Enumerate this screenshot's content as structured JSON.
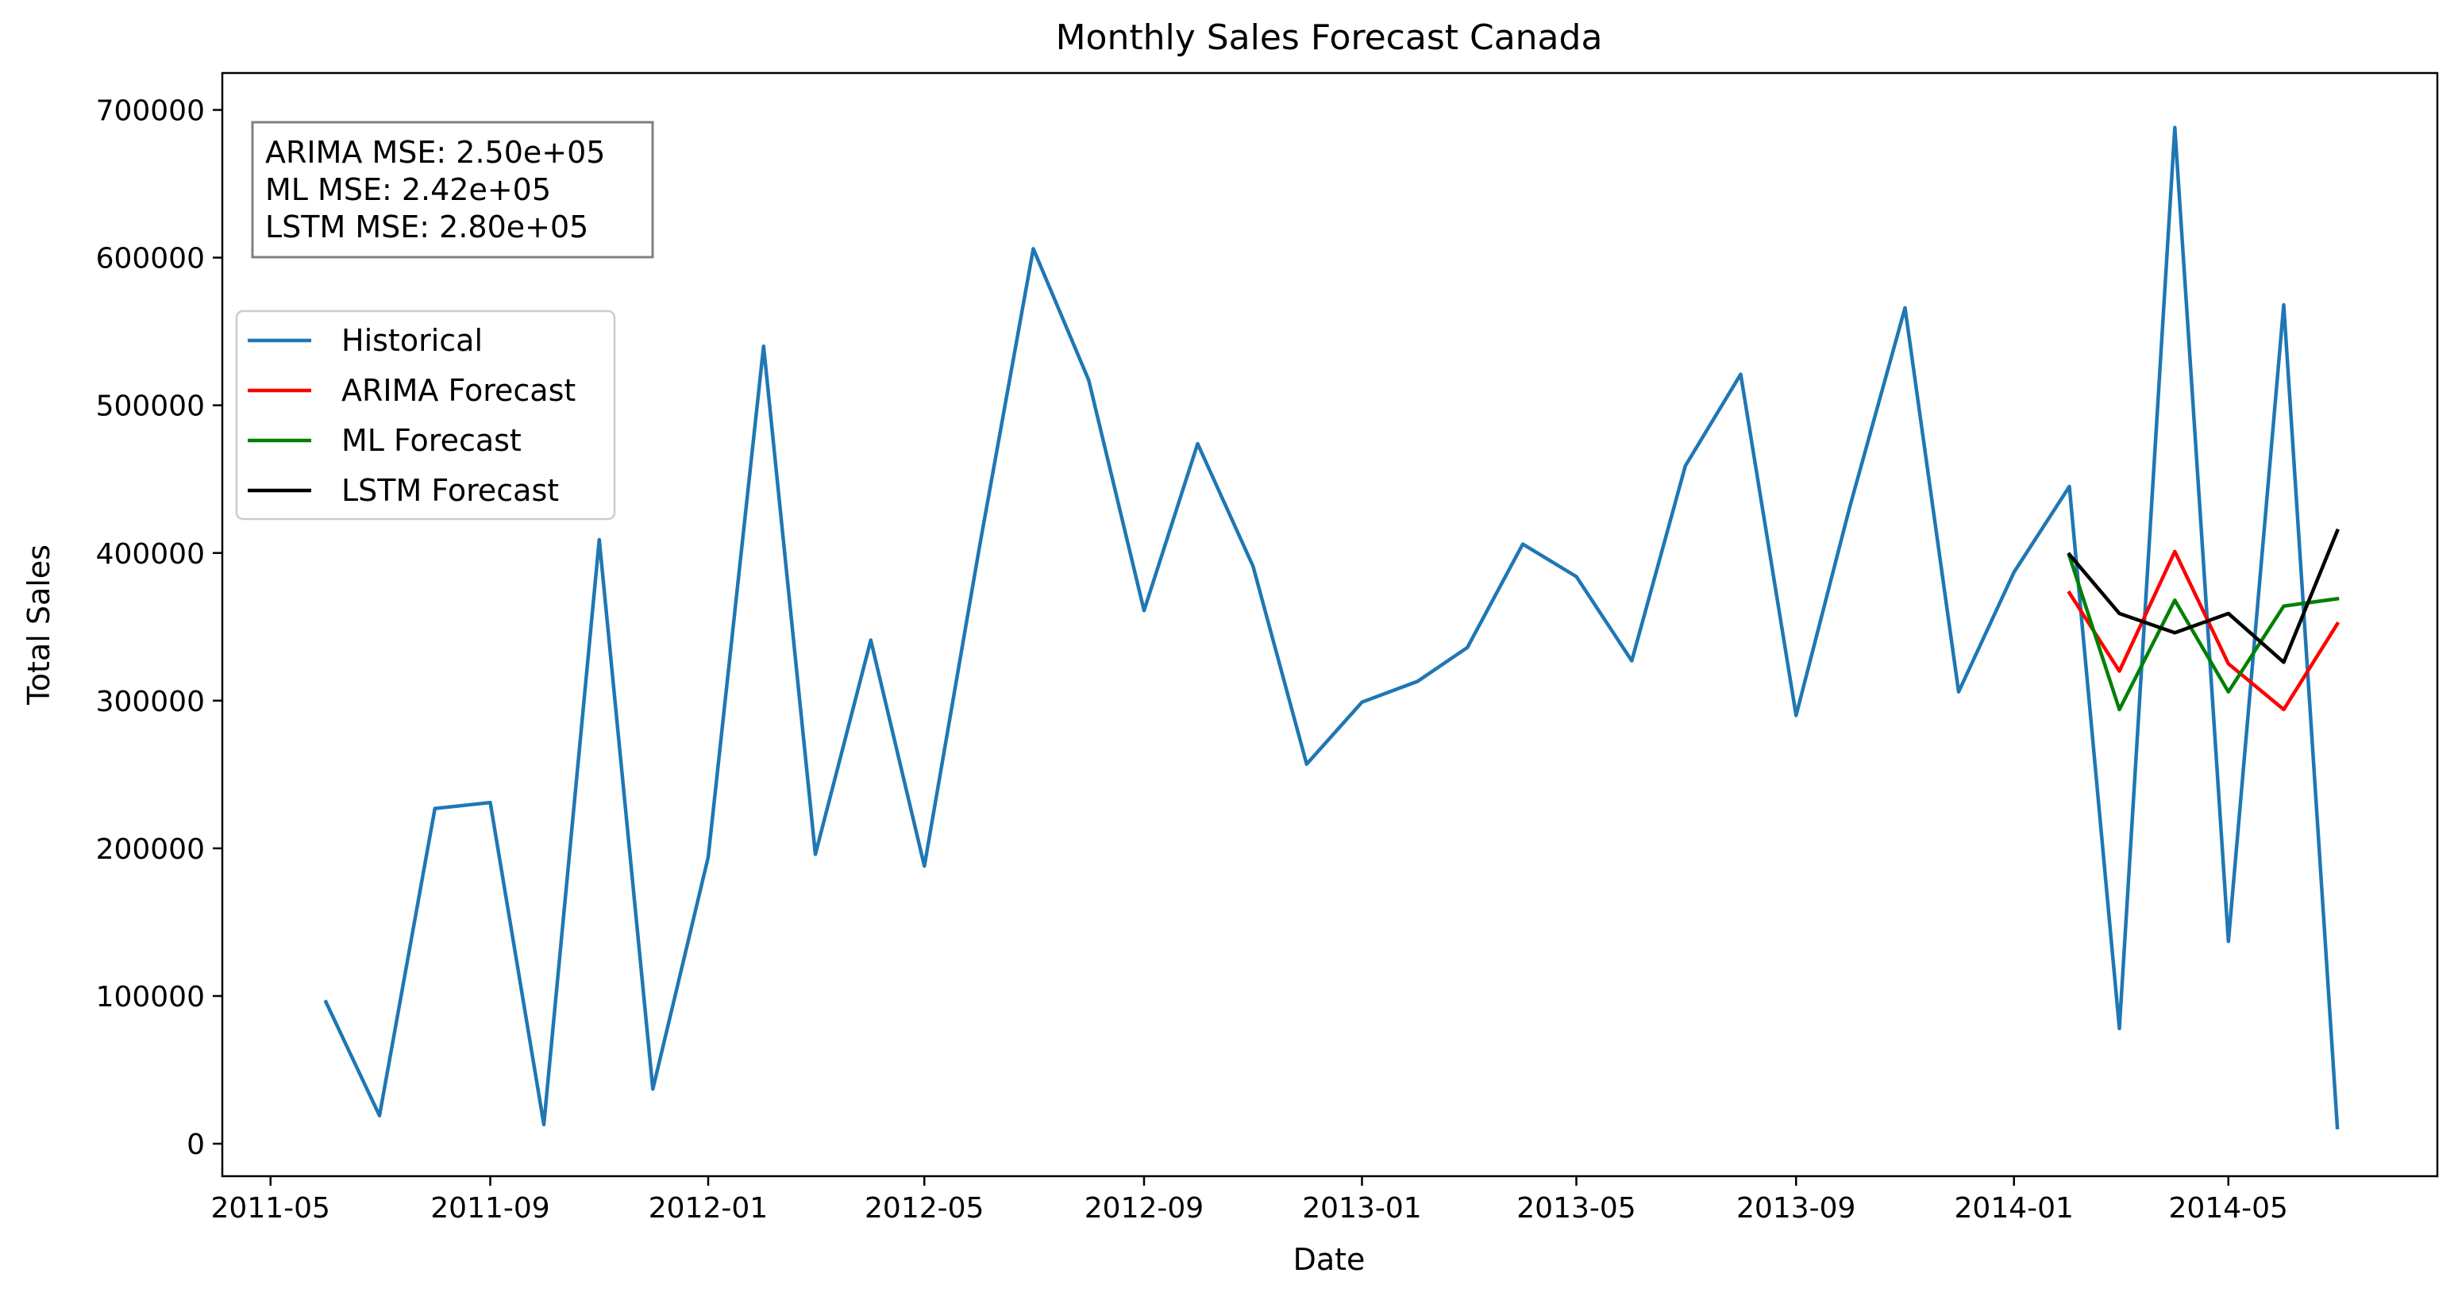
{
  "chart_data": {
    "type": "line",
    "title": "Monthly Sales Forecast Canada",
    "xlabel": "Date",
    "ylabel": "Total Sales",
    "x_range": [
      "2011-04-04",
      "2014-08-26"
    ],
    "ylim": [
      -22000,
      725000
    ],
    "x_ticks": [
      "2011-05",
      "2011-09",
      "2012-01",
      "2012-05",
      "2012-09",
      "2013-01",
      "2013-05",
      "2013-09",
      "2014-01",
      "2014-05"
    ],
    "y_ticks": [
      0,
      100000,
      200000,
      300000,
      400000,
      500000,
      600000,
      700000
    ],
    "y_tick_labels": [
      "0",
      "100000",
      "200000",
      "300000",
      "400000",
      "500000",
      "600000",
      "700000"
    ],
    "grid": false,
    "legend_position": "upper-left",
    "annotation": {
      "lines": [
        "ARIMA MSE: 2.50e+05",
        "ML MSE: 2.42e+05",
        "LSTM MSE: 2.80e+05"
      ]
    },
    "series": [
      {
        "name": "Historical",
        "color": "#1f77b4",
        "x": [
          "2011-06",
          "2011-07",
          "2011-08",
          "2011-09",
          "2011-10",
          "2011-11",
          "2011-12",
          "2012-01",
          "2012-02",
          "2012-03",
          "2012-04",
          "2012-05",
          "2012-06",
          "2012-07",
          "2012-08",
          "2012-09",
          "2012-10",
          "2012-11",
          "2012-12",
          "2013-01",
          "2013-02",
          "2013-03",
          "2013-04",
          "2013-05",
          "2013-06",
          "2013-07",
          "2013-08",
          "2013-09",
          "2013-10",
          "2013-11",
          "2013-12",
          "2014-01",
          "2014-02",
          "2014-03",
          "2014-04",
          "2014-05",
          "2014-06",
          "2014-07"
        ],
        "values": [
          96000,
          19000,
          227000,
          231000,
          13000,
          409000,
          37000,
          194000,
          540000,
          196000,
          341000,
          188000,
          405000,
          606000,
          517000,
          361000,
          474000,
          391000,
          257000,
          299000,
          313000,
          336000,
          406000,
          384000,
          327000,
          459000,
          521000,
          290000,
          431000,
          566000,
          306000,
          387000,
          445000,
          78000,
          688000,
          137000,
          568000,
          11000
        ]
      },
      {
        "name": "ARIMA Forecast",
        "color": "#ff0000",
        "x": [
          "2014-02",
          "2014-03",
          "2014-04",
          "2014-05",
          "2014-06",
          "2014-07"
        ],
        "values": [
          373000,
          320000,
          401000,
          325000,
          294000,
          352000
        ]
      },
      {
        "name": "ML Forecast",
        "color": "#008000",
        "x": [
          "2014-02",
          "2014-03",
          "2014-04",
          "2014-05",
          "2014-06",
          "2014-07"
        ],
        "values": [
          398000,
          294000,
          368000,
          306000,
          364000,
          369000
        ]
      },
      {
        "name": "LSTM Forecast",
        "color": "#000000",
        "x": [
          "2014-02",
          "2014-03",
          "2014-04",
          "2014-05",
          "2014-06",
          "2014-07"
        ],
        "values": [
          399000,
          359000,
          346000,
          359000,
          326000,
          415000
        ]
      }
    ]
  }
}
